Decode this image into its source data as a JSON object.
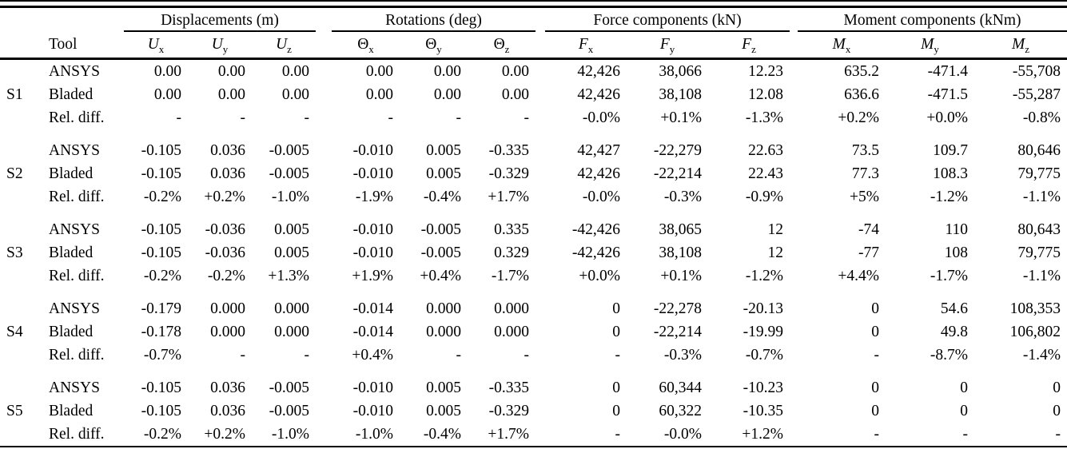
{
  "table": {
    "tool_header": "Tool",
    "groups": [
      {
        "label": "Displacements (m)"
      },
      {
        "label": "Rotations (deg)"
      },
      {
        "label": "Force components (kN)"
      },
      {
        "label": "Moment components (kNm)"
      }
    ],
    "symbols": [
      {
        "base": "U",
        "sub": "x"
      },
      {
        "base": "U",
        "sub": "y"
      },
      {
        "base": "U",
        "sub": "z"
      },
      {
        "base": "Θ",
        "sub": "x"
      },
      {
        "base": "Θ",
        "sub": "y"
      },
      {
        "base": "Θ",
        "sub": "z"
      },
      {
        "base": "F",
        "sub": "x"
      },
      {
        "base": "F",
        "sub": "y"
      },
      {
        "base": "F",
        "sub": "z"
      },
      {
        "base": "M",
        "sub": "x"
      },
      {
        "base": "M",
        "sub": "y"
      },
      {
        "base": "M",
        "sub": "z"
      }
    ],
    "sections": [
      {
        "id": "S1",
        "rows": [
          {
            "tool": "ANSYS",
            "values": [
              "0.00",
              "0.00",
              "0.00",
              "0.00",
              "0.00",
              "0.00",
              "42,426",
              "38,066",
              "12.23",
              "635.2",
              "-471.4",
              "-55,708"
            ]
          },
          {
            "tool": "Bladed",
            "values": [
              "0.00",
              "0.00",
              "0.00",
              "0.00",
              "0.00",
              "0.00",
              "42,426",
              "38,108",
              "12.08",
              "636.6",
              "-471.5",
              "-55,287"
            ]
          },
          {
            "tool": "Rel. diff.",
            "values": [
              "-",
              "-",
              "-",
              "-",
              "-",
              "-",
              "-0.0%",
              "+0.1%",
              "-1.3%",
              "+0.2%",
              "+0.0%",
              "-0.8%"
            ]
          }
        ]
      },
      {
        "id": "S2",
        "rows": [
          {
            "tool": "ANSYS",
            "values": [
              "-0.105",
              "0.036",
              "-0.005",
              "-0.010",
              "0.005",
              "-0.335",
              "42,427",
              "-22,279",
              "22.63",
              "73.5",
              "109.7",
              "80,646"
            ]
          },
          {
            "tool": "Bladed",
            "values": [
              "-0.105",
              "0.036",
              "-0.005",
              "-0.010",
              "0.005",
              "-0.329",
              "42,426",
              "-22,214",
              "22.43",
              "77.3",
              "108.3",
              "79,775"
            ]
          },
          {
            "tool": "Rel. diff.",
            "values": [
              "-0.2%",
              "+0.2%",
              "-1.0%",
              "-1.9%",
              "-0.4%",
              "+1.7%",
              "-0.0%",
              "-0.3%",
              "-0.9%",
              "+5%",
              "-1.2%",
              "-1.1%"
            ]
          }
        ]
      },
      {
        "id": "S3",
        "rows": [
          {
            "tool": "ANSYS",
            "values": [
              "-0.105",
              "-0.036",
              "0.005",
              "-0.010",
              "-0.005",
              "0.335",
              "-42,426",
              "38,065",
              "12",
              "-74",
              "110",
              "80,643"
            ]
          },
          {
            "tool": "Bladed",
            "values": [
              "-0.105",
              "-0.036",
              "0.005",
              "-0.010",
              "-0.005",
              "0.329",
              "-42,426",
              "38,108",
              "12",
              "-77",
              "108",
              "79,775"
            ]
          },
          {
            "tool": "Rel. diff.",
            "values": [
              "-0.2%",
              "-0.2%",
              "+1.3%",
              "+1.9%",
              "+0.4%",
              "-1.7%",
              "+0.0%",
              "+0.1%",
              "-1.2%",
              "+4.4%",
              "-1.7%",
              "-1.1%"
            ]
          }
        ]
      },
      {
        "id": "S4",
        "rows": [
          {
            "tool": "ANSYS",
            "values": [
              "-0.179",
              "0.000",
              "0.000",
              "-0.014",
              "0.000",
              "0.000",
              "0",
              "-22,278",
              "-20.13",
              "0",
              "54.6",
              "108,353"
            ]
          },
          {
            "tool": "Bladed",
            "values": [
              "-0.178",
              "0.000",
              "0.000",
              "-0.014",
              "0.000",
              "0.000",
              "0",
              "-22,214",
              "-19.99",
              "0",
              "49.8",
              "106,802"
            ]
          },
          {
            "tool": "Rel. diff.",
            "values": [
              "-0.7%",
              "-",
              "-",
              "+0.4%",
              "-",
              "-",
              "-",
              "-0.3%",
              "-0.7%",
              "-",
              "-8.7%",
              "-1.4%"
            ]
          }
        ]
      },
      {
        "id": "S5",
        "rows": [
          {
            "tool": "ANSYS",
            "values": [
              "-0.105",
              "0.036",
              "-0.005",
              "-0.010",
              "0.005",
              "-0.335",
              "0",
              "60,344",
              "-10.23",
              "0",
              "0",
              "0"
            ]
          },
          {
            "tool": "Bladed",
            "values": [
              "-0.105",
              "0.036",
              "-0.005",
              "-0.010",
              "0.005",
              "-0.329",
              "0",
              "60,322",
              "-10.35",
              "0",
              "0",
              "0"
            ]
          },
          {
            "tool": "Rel. diff.",
            "values": [
              "-0.2%",
              "+0.2%",
              "-1.0%",
              "-1.0%",
              "-0.4%",
              "+1.7%",
              "-",
              "-0.0%",
              "+1.2%",
              "-",
              "-",
              "-"
            ]
          }
        ]
      }
    ]
  },
  "colors": {
    "text": "#000000",
    "background": "#ffffff",
    "rule": "#000000"
  }
}
